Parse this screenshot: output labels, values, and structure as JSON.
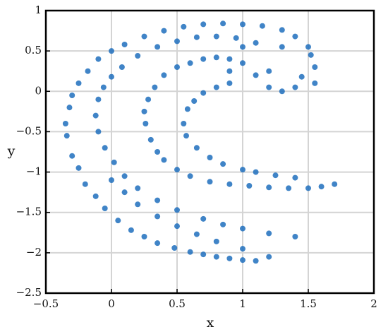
{
  "chart_data": {
    "type": "scatter",
    "x_label": "x",
    "y_label": "y",
    "xlim": [
      -0.5,
      2
    ],
    "ylim": [
      -2.5,
      1
    ],
    "xticks": [
      {
        "value": -0.5,
        "label": "−0.5"
      },
      0,
      0.5,
      1,
      1.5,
      2
    ],
    "yticks": [
      {
        "value": -2.5,
        "label": "−2.5"
      },
      {
        "value": -2,
        "label": "−2"
      },
      {
        "value": -1.5,
        "label": "−1.5"
      },
      {
        "value": -1,
        "label": "−1"
      },
      {
        "value": -0.5,
        "label": "−0.5"
      },
      0,
      0.5,
      1
    ],
    "grid": true,
    "series": [
      {
        "color": "#1f6fbd",
        "x": [
          1.55,
          1.5,
          1.4,
          1.3,
          1.15,
          1.0,
          0.85,
          0.7,
          0.55,
          0.4,
          0.25,
          0.1,
          0.0,
          -0.1,
          -0.18,
          -0.25,
          -0.3,
          -0.32,
          -0.35,
          -0.34,
          -0.3,
          -0.25,
          -0.2,
          -0.12,
          -0.05,
          0.05,
          0.15,
          0.25,
          0.35,
          0.48,
          0.6,
          0.7,
          0.8,
          0.9,
          1.0,
          1.1,
          1.1,
          0.95,
          0.8,
          0.65,
          0.5,
          0.35,
          0.2,
          0.08,
          0.0,
          -0.06,
          -0.1,
          -0.12,
          -0.1,
          -0.05,
          0.02,
          0.1,
          0.2,
          0.35,
          0.5,
          0.7,
          0.85,
          1.0,
          1.2,
          1.4,
          1.45,
          1.4,
          1.3,
          1.2,
          1.1,
          1.0,
          0.9,
          0.8,
          0.7,
          0.6,
          0.5,
          0.4,
          0.33,
          0.28,
          0.25,
          0.26,
          0.3,
          0.35,
          0.4,
          0.5,
          0.6,
          0.75,
          0.9,
          1.05,
          1.2,
          1.35,
          1.5,
          1.6,
          1.7,
          0.9,
          0.8,
          0.7,
          0.63,
          0.58,
          0.55,
          0.57,
          0.65,
          0.75,
          0.85,
          1.0,
          1.1,
          1.25,
          1.4,
          1.55,
          1.52,
          1.3,
          1.2,
          1.0,
          0.9,
          0.0,
          0.1,
          0.2,
          0.35,
          0.5,
          0.65,
          0.8,
          1.0,
          1.2
        ],
        "y": [
          0.3,
          0.55,
          0.68,
          0.76,
          0.81,
          0.83,
          0.84,
          0.83,
          0.8,
          0.75,
          0.68,
          0.58,
          0.5,
          0.4,
          0.25,
          0.1,
          -0.05,
          -0.2,
          -0.4,
          -0.55,
          -0.8,
          -0.95,
          -1.15,
          -1.3,
          -1.45,
          -1.6,
          -1.72,
          -1.8,
          -1.88,
          -1.94,
          -1.99,
          -2.02,
          -2.05,
          -2.07,
          -2.09,
          -2.1,
          0.6,
          0.66,
          0.68,
          0.67,
          0.62,
          0.55,
          0.44,
          0.3,
          0.18,
          0.05,
          -0.1,
          -0.3,
          -0.5,
          -0.7,
          -0.88,
          -1.05,
          -1.2,
          -1.35,
          -1.47,
          -1.58,
          -1.65,
          -1.7,
          -1.76,
          -1.8,
          0.18,
          0.05,
          0.0,
          0.05,
          0.2,
          0.35,
          0.4,
          0.42,
          0.4,
          0.35,
          0.3,
          0.2,
          0.05,
          -0.1,
          -0.25,
          -0.4,
          -0.6,
          -0.75,
          -0.85,
          -0.97,
          -1.05,
          -1.12,
          -1.15,
          -1.17,
          -1.19,
          -1.2,
          -1.2,
          -1.18,
          -1.15,
          0.1,
          0.05,
          -0.02,
          -0.12,
          -0.22,
          -0.4,
          -0.55,
          -0.7,
          -0.82,
          -0.9,
          -0.97,
          -1.0,
          -1.04,
          -1.07,
          0.1,
          0.45,
          0.55,
          0.25,
          0.55,
          0.25,
          -1.1,
          -1.25,
          -1.4,
          -1.55,
          -1.67,
          -1.77,
          -1.86,
          -1.95,
          -2.05
        ]
      }
    ]
  }
}
